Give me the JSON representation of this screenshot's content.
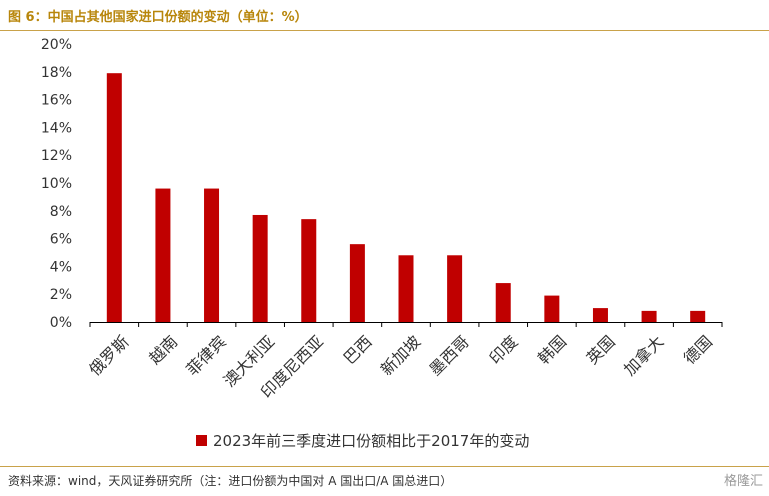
{
  "title": "图 6：中国占其他国家进口份额的变动（单位：%）",
  "source": "资料来源：wind，天风证券研究所（注：进口份额为中国对 A 国出口/A 国总进口）",
  "watermark": "格隆汇",
  "colors": {
    "bar": "#c00000",
    "accent": "#b8860b",
    "axis": "#000000",
    "text": "#333333"
  },
  "chart_data": {
    "type": "bar",
    "categories": [
      "俄罗斯",
      "越南",
      "菲律宾",
      "澳大利亚",
      "印度尼西亚",
      "巴西",
      "新加坡",
      "墨西哥",
      "印度",
      "韩国",
      "英国",
      "加拿大",
      "德国"
    ],
    "series": [
      {
        "name": "2023年前三季度进口份额相比于2017年的变动",
        "values": [
          17.9,
          9.6,
          9.6,
          7.7,
          7.4,
          5.6,
          4.8,
          4.8,
          2.8,
          1.9,
          1.0,
          0.8,
          0.8
        ]
      }
    ],
    "ylim": [
      0,
      20
    ],
    "yticks": [
      "0%",
      "2%",
      "4%",
      "6%",
      "8%",
      "10%",
      "12%",
      "14%",
      "16%",
      "18%",
      "20%"
    ],
    "grid": false,
    "legend_position": "bottom"
  }
}
